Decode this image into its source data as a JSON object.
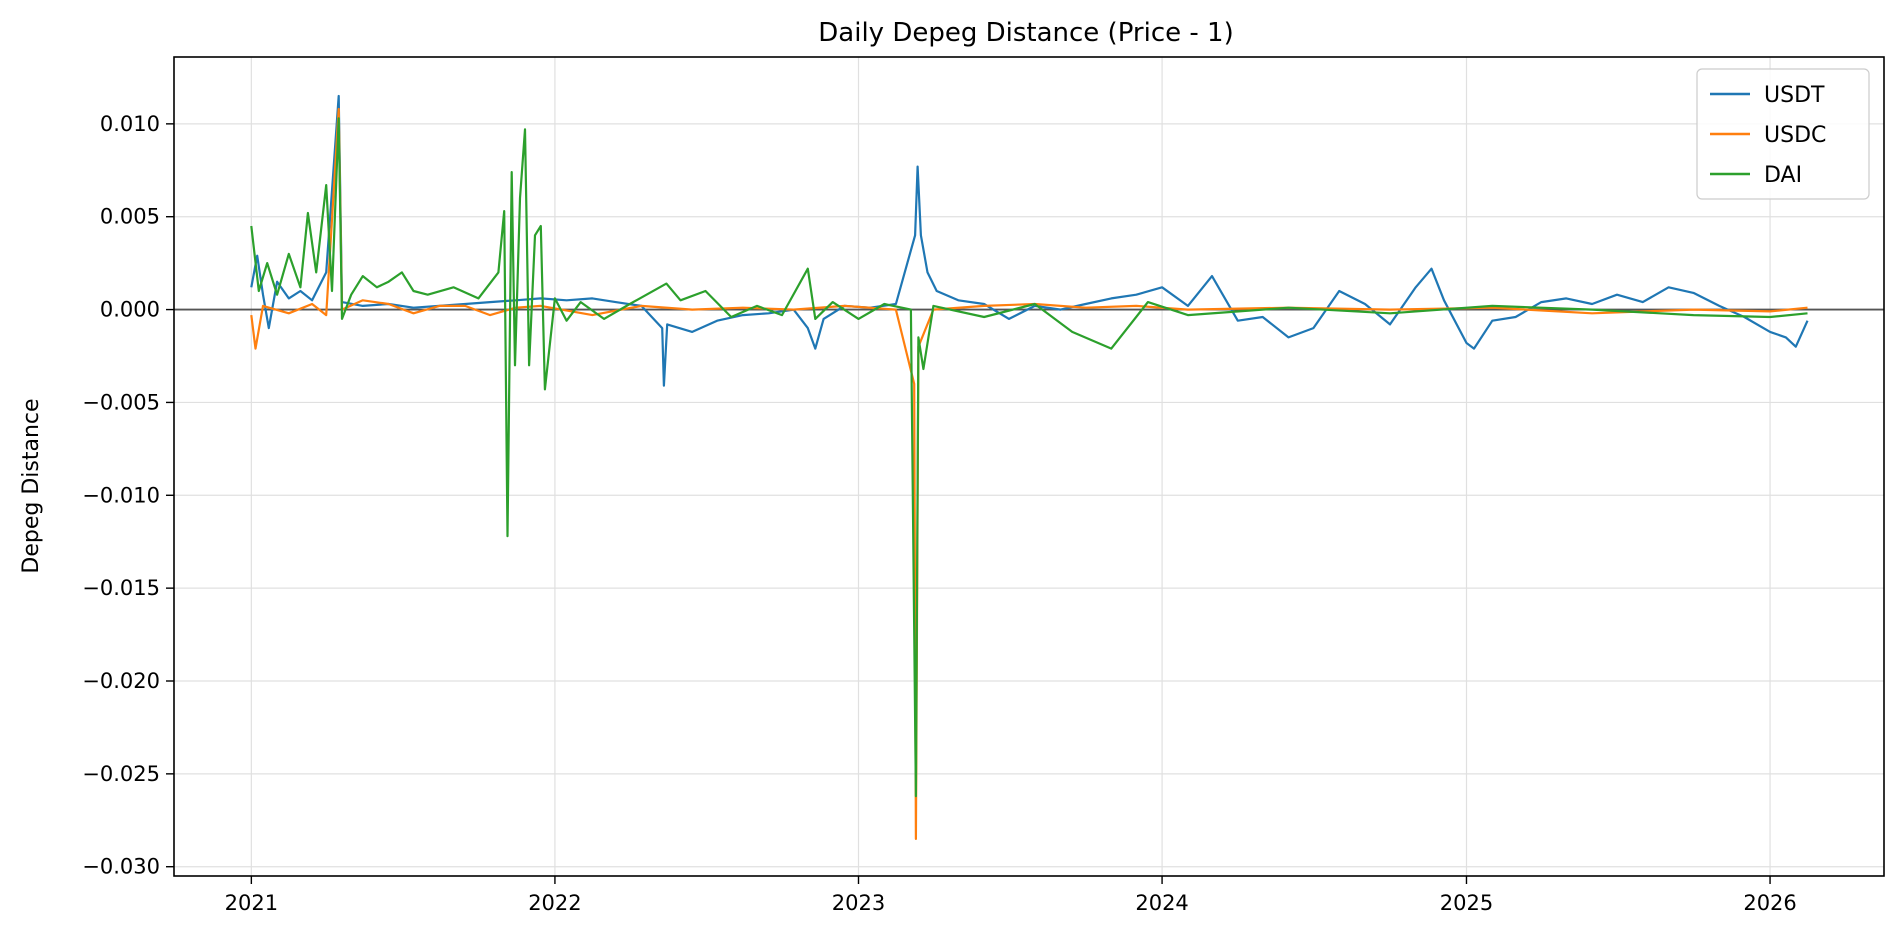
{
  "chart_data": {
    "type": "line",
    "title": "Daily Depeg Distance (Price - 1)",
    "xlabel": "",
    "ylabel": "Depeg Distance",
    "grid": true,
    "legend_position": "top-right",
    "xlim": [
      "2020-09-30",
      "2026-05-18"
    ],
    "ylim": [
      -0.0305,
      0.0136
    ],
    "x_ticks": [
      "2021-01-01",
      "2022-01-01",
      "2023-01-01",
      "2024-01-01",
      "2025-01-01",
      "2026-01-01"
    ],
    "x_tick_labels": [
      "2021",
      "2022",
      "2023",
      "2024",
      "2025",
      "2026"
    ],
    "y_ticks": [
      0.01,
      0.005,
      0.0,
      -0.005,
      -0.01,
      -0.015,
      -0.02,
      -0.025,
      -0.03
    ],
    "y_tick_labels": [
      "0.010",
      "0.005",
      "0.000",
      "−0.005",
      "−0.010",
      "−0.015",
      "−0.020",
      "−0.025",
      "−0.030"
    ],
    "reference_line": {
      "y": 0,
      "color": "#555555"
    },
    "series": [
      {
        "name": "USDT",
        "color": "#1f77b4",
        "points": [
          [
            "2021-01-01",
            0.0012
          ],
          [
            "2021-01-08",
            0.0029
          ],
          [
            "2021-01-15",
            0.0008
          ],
          [
            "2021-01-22",
            -0.001
          ],
          [
            "2021-02-01",
            0.0015
          ],
          [
            "2021-02-15",
            0.0006
          ],
          [
            "2021-03-01",
            0.001
          ],
          [
            "2021-03-15",
            0.0005
          ],
          [
            "2021-04-01",
            0.002
          ],
          [
            "2021-04-16",
            0.0115
          ],
          [
            "2021-04-20",
            0.0004
          ],
          [
            "2021-05-15",
            0.0002
          ],
          [
            "2021-06-15",
            0.0003
          ],
          [
            "2021-07-15",
            0.0001
          ],
          [
            "2021-08-15",
            0.0002
          ],
          [
            "2021-09-15",
            0.0003
          ],
          [
            "2021-10-15",
            0.0004
          ],
          [
            "2021-11-15",
            0.0005
          ],
          [
            "2021-12-15",
            0.0006
          ],
          [
            "2022-01-15",
            0.0005
          ],
          [
            "2022-02-15",
            0.0006
          ],
          [
            "2022-03-15",
            0.0004
          ],
          [
            "2022-04-15",
            0.0002
          ],
          [
            "2022-05-10",
            -0.001
          ],
          [
            "2022-05-12",
            -0.0041
          ],
          [
            "2022-05-16",
            -0.0008
          ],
          [
            "2022-06-15",
            -0.0012
          ],
          [
            "2022-07-15",
            -0.0006
          ],
          [
            "2022-08-15",
            -0.0003
          ],
          [
            "2022-09-15",
            -0.0002
          ],
          [
            "2022-10-15",
            0.0
          ],
          [
            "2022-11-01",
            -0.001
          ],
          [
            "2022-11-10",
            -0.0021
          ],
          [
            "2022-11-20",
            -0.0005
          ],
          [
            "2022-12-15",
            0.0002
          ],
          [
            "2023-01-15",
            0.0001
          ],
          [
            "2023-02-15",
            0.0003
          ],
          [
            "2023-03-10",
            0.004
          ],
          [
            "2023-03-13",
            0.0077
          ],
          [
            "2023-03-17",
            0.004
          ],
          [
            "2023-03-25",
            0.002
          ],
          [
            "2023-04-05",
            0.001
          ],
          [
            "2023-05-01",
            0.0005
          ],
          [
            "2023-06-01",
            0.0003
          ],
          [
            "2023-07-01",
            -0.0005
          ],
          [
            "2023-08-01",
            0.0002
          ],
          [
            "2023-09-01",
            0.0
          ],
          [
            "2023-10-01",
            0.0003
          ],
          [
            "2023-11-01",
            0.0006
          ],
          [
            "2023-12-01",
            0.0008
          ],
          [
            "2024-01-01",
            0.0012
          ],
          [
            "2024-02-01",
            0.0002
          ],
          [
            "2024-03-01",
            0.0018
          ],
          [
            "2024-04-01",
            -0.0006
          ],
          [
            "2024-05-01",
            -0.0004
          ],
          [
            "2024-06-01",
            -0.0015
          ],
          [
            "2024-07-01",
            -0.001
          ],
          [
            "2024-08-01",
            0.001
          ],
          [
            "2024-09-01",
            0.0003
          ],
          [
            "2024-10-01",
            -0.0008
          ],
          [
            "2024-11-01",
            0.0012
          ],
          [
            "2024-11-20",
            0.0022
          ],
          [
            "2024-12-05",
            0.0005
          ],
          [
            "2025-01-01",
            -0.0018
          ],
          [
            "2025-01-10",
            -0.0021
          ],
          [
            "2025-02-01",
            -0.0006
          ],
          [
            "2025-03-01",
            -0.0004
          ],
          [
            "2025-04-01",
            0.0004
          ],
          [
            "2025-05-01",
            0.0006
          ],
          [
            "2025-06-01",
            0.0003
          ],
          [
            "2025-07-01",
            0.0008
          ],
          [
            "2025-08-01",
            0.0004
          ],
          [
            "2025-09-01",
            0.0012
          ],
          [
            "2025-10-01",
            0.0009
          ],
          [
            "2025-11-01",
            0.0002
          ],
          [
            "2025-12-01",
            -0.0004
          ],
          [
            "2026-01-01",
            -0.0012
          ],
          [
            "2026-01-20",
            -0.0015
          ],
          [
            "2026-02-01",
            -0.002
          ],
          [
            "2026-02-15",
            -0.0006
          ]
        ]
      },
      {
        "name": "USDC",
        "color": "#ff7f0e",
        "points": [
          [
            "2021-01-01",
            -0.0003
          ],
          [
            "2021-01-06",
            -0.0021
          ],
          [
            "2021-01-15",
            0.0002
          ],
          [
            "2021-02-15",
            -0.0002
          ],
          [
            "2021-03-15",
            0.0003
          ],
          [
            "2021-04-01",
            -0.0003
          ],
          [
            "2021-04-16",
            0.0108
          ],
          [
            "2021-04-20",
            0.0
          ],
          [
            "2021-05-15",
            0.0005
          ],
          [
            "2021-06-15",
            0.0003
          ],
          [
            "2021-07-15",
            -0.0002
          ],
          [
            "2021-08-15",
            0.0002
          ],
          [
            "2021-09-15",
            0.0002
          ],
          [
            "2021-10-15",
            -0.0003
          ],
          [
            "2021-11-15",
            0.0001
          ],
          [
            "2021-12-15",
            0.0002
          ],
          [
            "2022-02-15",
            -0.0003
          ],
          [
            "2022-04-15",
            0.0002
          ],
          [
            "2022-06-15",
            0.0
          ],
          [
            "2022-08-15",
            0.0001
          ],
          [
            "2022-10-15",
            0.0
          ],
          [
            "2022-12-15",
            0.0002
          ],
          [
            "2023-02-15",
            0.0
          ],
          [
            "2023-03-09",
            -0.004
          ],
          [
            "2023-03-11",
            -0.0285
          ],
          [
            "2023-03-14",
            -0.002
          ],
          [
            "2023-04-01",
            0.0
          ],
          [
            "2023-06-01",
            0.0002
          ],
          [
            "2023-08-01",
            0.0003
          ],
          [
            "2023-10-01",
            0.0001
          ],
          [
            "2023-12-01",
            0.0002
          ],
          [
            "2024-02-01",
            0.0
          ],
          [
            "2024-06-01",
            0.0001
          ],
          [
            "2024-10-01",
            0.0
          ],
          [
            "2025-02-01",
            0.0001
          ],
          [
            "2025-06-01",
            -0.0002
          ],
          [
            "2025-10-01",
            0.0
          ],
          [
            "2026-01-01",
            -0.0001
          ],
          [
            "2026-02-15",
            0.0001
          ]
        ]
      },
      {
        "name": "DAI",
        "color": "#2ca02c",
        "points": [
          [
            "2021-01-01",
            0.0045
          ],
          [
            "2021-01-10",
            0.001
          ],
          [
            "2021-01-20",
            0.0025
          ],
          [
            "2021-02-01",
            0.0008
          ],
          [
            "2021-02-15",
            0.003
          ],
          [
            "2021-03-01",
            0.0012
          ],
          [
            "2021-03-10",
            0.0052
          ],
          [
            "2021-03-20",
            0.002
          ],
          [
            "2021-04-01",
            0.0067
          ],
          [
            "2021-04-08",
            0.001
          ],
          [
            "2021-04-16",
            0.0103
          ],
          [
            "2021-04-20",
            -0.0005
          ],
          [
            "2021-05-01",
            0.0008
          ],
          [
            "2021-05-15",
            0.0018
          ],
          [
            "2021-06-01",
            0.0012
          ],
          [
            "2021-06-15",
            0.0015
          ],
          [
            "2021-07-01",
            0.002
          ],
          [
            "2021-07-15",
            0.001
          ],
          [
            "2021-08-01",
            0.0008
          ],
          [
            "2021-09-01",
            0.0012
          ],
          [
            "2021-10-01",
            0.0006
          ],
          [
            "2021-10-25",
            0.002
          ],
          [
            "2021-11-01",
            0.0053
          ],
          [
            "2021-11-05",
            -0.0122
          ],
          [
            "2021-11-10",
            0.0074
          ],
          [
            "2021-11-14",
            -0.003
          ],
          [
            "2021-11-20",
            0.006
          ],
          [
            "2021-11-26",
            0.0097
          ],
          [
            "2021-12-01",
            -0.003
          ],
          [
            "2021-12-08",
            0.004
          ],
          [
            "2021-12-15",
            0.0045
          ],
          [
            "2021-12-20",
            -0.0043
          ],
          [
            "2022-01-01",
            0.0006
          ],
          [
            "2022-01-15",
            -0.0006
          ],
          [
            "2022-02-01",
            0.0004
          ],
          [
            "2022-03-01",
            -0.0005
          ],
          [
            "2022-04-01",
            0.0003
          ],
          [
            "2022-05-15",
            0.0014
          ],
          [
            "2022-06-01",
            0.0005
          ],
          [
            "2022-07-01",
            0.001
          ],
          [
            "2022-08-01",
            -0.0004
          ],
          [
            "2022-09-01",
            0.0002
          ],
          [
            "2022-10-01",
            -0.0003
          ],
          [
            "2022-11-01",
            0.0022
          ],
          [
            "2022-11-10",
            -0.0005
          ],
          [
            "2022-12-01",
            0.0004
          ],
          [
            "2023-01-01",
            -0.0005
          ],
          [
            "2023-02-01",
            0.0003
          ],
          [
            "2023-03-05",
            0.0
          ],
          [
            "2023-03-11",
            -0.0262
          ],
          [
            "2023-03-14",
            -0.0015
          ],
          [
            "2023-03-20",
            -0.0032
          ],
          [
            "2023-04-01",
            0.0002
          ],
          [
            "2023-06-01",
            -0.0004
          ],
          [
            "2023-08-01",
            0.0003
          ],
          [
            "2023-09-15",
            -0.0012
          ],
          [
            "2023-11-01",
            -0.0021
          ],
          [
            "2023-12-15",
            0.0004
          ],
          [
            "2024-02-01",
            -0.0003
          ],
          [
            "2024-06-01",
            0.0001
          ],
          [
            "2024-10-01",
            -0.0002
          ],
          [
            "2025-02-01",
            0.0002
          ],
          [
            "2025-06-01",
            0.0
          ],
          [
            "2025-10-01",
            -0.0003
          ],
          [
            "2026-01-01",
            -0.0004
          ],
          [
            "2026-02-15",
            -0.0002
          ]
        ]
      }
    ]
  }
}
